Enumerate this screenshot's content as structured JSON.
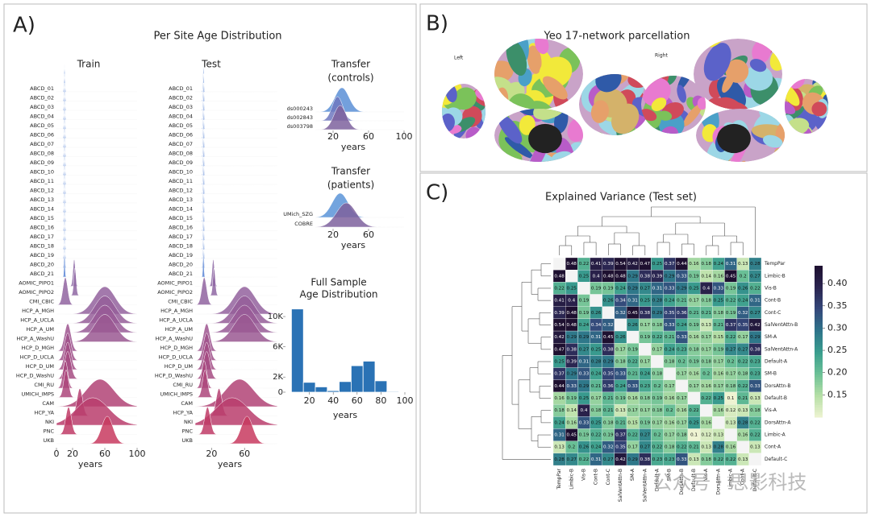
{
  "figure": {
    "panel_a": {
      "label": "A)",
      "title": "Per Site Age Distribution"
    },
    "panel_b": {
      "label": "B)",
      "title": "Yeo 17-network parcellation",
      "left": "Left",
      "right": "Right"
    },
    "panel_c": {
      "label": "C)",
      "title": "Explained Variance (Test set)"
    },
    "watermark": "公众号 · 思影科技"
  },
  "chart_data": [
    {
      "type": "ridge",
      "title": [
        "Train"
      ],
      "xlabel": "years",
      "xlim": [
        0,
        100
      ],
      "xticks": [
        0,
        20,
        60,
        100
      ],
      "series": [
        {
          "name": "ABCD_01",
          "mean": 10,
          "sd": 0.6,
          "color": "#5b86d6"
        },
        {
          "name": "ABCD_02",
          "mean": 10,
          "sd": 0.6,
          "color": "#5b86d6"
        },
        {
          "name": "ABCD_03",
          "mean": 10,
          "sd": 0.6,
          "color": "#5b86d6"
        },
        {
          "name": "ABCD_04",
          "mean": 10,
          "sd": 0.6,
          "color": "#5b86d6"
        },
        {
          "name": "ABCD_05",
          "mean": 10,
          "sd": 0.6,
          "color": "#5b86d6"
        },
        {
          "name": "ABCD_06",
          "mean": 10,
          "sd": 0.6,
          "color": "#5b86d6"
        },
        {
          "name": "ABCD_07",
          "mean": 10,
          "sd": 0.6,
          "color": "#5b86d6"
        },
        {
          "name": "ABCD_08",
          "mean": 10,
          "sd": 0.6,
          "color": "#5b86d6"
        },
        {
          "name": "ABCD_09",
          "mean": 10,
          "sd": 0.6,
          "color": "#5b86d6"
        },
        {
          "name": "ABCD_10",
          "mean": 10,
          "sd": 0.6,
          "color": "#5b86d6"
        },
        {
          "name": "ABCD_11",
          "mean": 10,
          "sd": 0.6,
          "color": "#5b86d6"
        },
        {
          "name": "ABCD_12",
          "mean": 10,
          "sd": 0.6,
          "color": "#5b86d6"
        },
        {
          "name": "ABCD_13",
          "mean": 10,
          "sd": 0.6,
          "color": "#5b86d6"
        },
        {
          "name": "ABCD_14",
          "mean": 10,
          "sd": 0.6,
          "color": "#5b86d6"
        },
        {
          "name": "ABCD_15",
          "mean": 10,
          "sd": 0.6,
          "color": "#5b86d6"
        },
        {
          "name": "ABCD_16",
          "mean": 10,
          "sd": 0.6,
          "color": "#5b86d6"
        },
        {
          "name": "ABCD_17",
          "mean": 10,
          "sd": 0.6,
          "color": "#5b86d6"
        },
        {
          "name": "ABCD_18",
          "mean": 10,
          "sd": 0.6,
          "color": "#5b86d6"
        },
        {
          "name": "ABCD_19",
          "mean": 10,
          "sd": 0.6,
          "color": "#5b86d6"
        },
        {
          "name": "ABCD_20",
          "mean": 10,
          "sd": 0.6,
          "color": "#5b86d6"
        },
        {
          "name": "ABCD_21",
          "mean": 10,
          "sd": 0.6,
          "color": "#5b86d6"
        },
        {
          "name": "AOMIC_PIPO1",
          "mean": 22,
          "sd": 1.5,
          "color": "#8e6aa6"
        },
        {
          "name": "AOMIC_PIPO2",
          "mean": 23,
          "sd": 1.5,
          "color": "#8f67a3"
        },
        {
          "name": "CMI_CBIC",
          "mean": 11,
          "sd": 3,
          "color": "#9164a0"
        },
        {
          "name": "HCP_A_MGH",
          "mean": 60,
          "sd": 13,
          "color": "#93619d"
        },
        {
          "name": "HCP_A_UCLA",
          "mean": 60,
          "sd": 13,
          "color": "#955e99"
        },
        {
          "name": "HCP_A_UM",
          "mean": 60,
          "sd": 13,
          "color": "#985b96"
        },
        {
          "name": "HCP_A_WashU",
          "mean": 60,
          "sd": 13,
          "color": "#9a5892"
        },
        {
          "name": "HCP_D_MGH",
          "mean": 14,
          "sd": 4,
          "color": "#9d558f"
        },
        {
          "name": "HCP_D_UCLA",
          "mean": 14,
          "sd": 4,
          "color": "#a0528b"
        },
        {
          "name": "HCP_D_UM",
          "mean": 14,
          "sd": 4,
          "color": "#a34f87"
        },
        {
          "name": "HCP_D_WashU",
          "mean": 14,
          "sd": 4,
          "color": "#a64c83"
        },
        {
          "name": "CMI_RU",
          "mean": 11,
          "sd": 3,
          "color": "#a9497f"
        },
        {
          "name": "UMICH_IMPS",
          "mean": 12,
          "sd": 3,
          "color": "#ad467b"
        },
        {
          "name": "CAM",
          "mean": 54,
          "sd": 17,
          "color": "#b14376"
        },
        {
          "name": "HCP_YA",
          "mean": 29,
          "sd": 3.5,
          "color": "#b54071"
        },
        {
          "name": "NKI",
          "mean": 45,
          "sd": 20,
          "color": "#ba3d6c"
        },
        {
          "name": "PNC",
          "mean": 15,
          "sd": 3.5,
          "color": "#c03b66"
        },
        {
          "name": "UKB",
          "mean": 63,
          "sd": 7,
          "color": "#c83a5f"
        }
      ]
    },
    {
      "type": "ridge",
      "title": [
        "Test"
      ],
      "xlabel": "years",
      "xlim": [
        0,
        100
      ],
      "xticks": [
        20,
        60
      ],
      "series": [
        {
          "name": "ABCD_01",
          "mean": 10,
          "sd": 0.6,
          "color": "#5b86d6"
        },
        {
          "name": "ABCD_02",
          "mean": 10,
          "sd": 0.6,
          "color": "#5b86d6"
        },
        {
          "name": "ABCD_03",
          "mean": 10,
          "sd": 0.6,
          "color": "#5b86d6"
        },
        {
          "name": "ABCD_04",
          "mean": 10,
          "sd": 0.6,
          "color": "#5b86d6"
        },
        {
          "name": "ABCD_05",
          "mean": 10,
          "sd": 0.6,
          "color": "#5b86d6"
        },
        {
          "name": "ABCD_06",
          "mean": 10,
          "sd": 0.6,
          "color": "#5b86d6"
        },
        {
          "name": "ABCD_07",
          "mean": 10,
          "sd": 0.6,
          "color": "#5b86d6"
        },
        {
          "name": "ABCD_08",
          "mean": 10,
          "sd": 0.6,
          "color": "#5b86d6"
        },
        {
          "name": "ABCD_09",
          "mean": 10,
          "sd": 0.6,
          "color": "#5b86d6"
        },
        {
          "name": "ABCD_10",
          "mean": 10,
          "sd": 0.6,
          "color": "#5b86d6"
        },
        {
          "name": "ABCD_11",
          "mean": 10,
          "sd": 0.6,
          "color": "#5b86d6"
        },
        {
          "name": "ABCD_12",
          "mean": 10,
          "sd": 0.6,
          "color": "#5b86d6"
        },
        {
          "name": "ABCD_13",
          "mean": 10,
          "sd": 0.6,
          "color": "#5b86d6"
        },
        {
          "name": "ABCD_14",
          "mean": 10,
          "sd": 0.6,
          "color": "#5b86d6"
        },
        {
          "name": "ABCD_15",
          "mean": 10,
          "sd": 0.6,
          "color": "#5b86d6"
        },
        {
          "name": "ABCD_16",
          "mean": 10,
          "sd": 0.6,
          "color": "#5b86d6"
        },
        {
          "name": "ABCD_17",
          "mean": 10,
          "sd": 0.6,
          "color": "#5b86d6"
        },
        {
          "name": "ABCD_18",
          "mean": 10,
          "sd": 0.6,
          "color": "#5b86d6"
        },
        {
          "name": "ABCD_19",
          "mean": 10,
          "sd": 0.6,
          "color": "#5b86d6"
        },
        {
          "name": "ABCD_20",
          "mean": 10,
          "sd": 0.6,
          "color": "#5b86d6"
        },
        {
          "name": "ABCD_21",
          "mean": 10,
          "sd": 0.6,
          "color": "#5b86d6"
        },
        {
          "name": "AOMIC_PIPO1",
          "mean": 22,
          "sd": 1.5,
          "color": "#8e6aa6"
        },
        {
          "name": "AOMIC_PIPO2",
          "mean": 23,
          "sd": 1.5,
          "color": "#8f67a3"
        },
        {
          "name": "CMI_CBIC",
          "mean": 11,
          "sd": 3,
          "color": "#9164a0"
        },
        {
          "name": "HCP_A_MGH",
          "mean": 60,
          "sd": 13,
          "color": "#93619d"
        },
        {
          "name": "HCP_A_UCLA",
          "mean": 60,
          "sd": 13,
          "color": "#955e99"
        },
        {
          "name": "HCP_A_UM",
          "mean": 60,
          "sd": 13,
          "color": "#985b96"
        },
        {
          "name": "HCP_A_WashU",
          "mean": 60,
          "sd": 13,
          "color": "#9a5892"
        },
        {
          "name": "HCP_D_MGH",
          "mean": 14,
          "sd": 4,
          "color": "#9d558f"
        },
        {
          "name": "HCP_D_UCLA",
          "mean": 14,
          "sd": 4,
          "color": "#a0528b"
        },
        {
          "name": "HCP_D_UM",
          "mean": 14,
          "sd": 4,
          "color": "#a34f87"
        },
        {
          "name": "HCP_D_WashU",
          "mean": 14,
          "sd": 4,
          "color": "#a64c83"
        },
        {
          "name": "CMI_RU",
          "mean": 11,
          "sd": 3,
          "color": "#a9497f"
        },
        {
          "name": "UMICH_IMPS",
          "mean": 12,
          "sd": 3,
          "color": "#ad467b"
        },
        {
          "name": "CAM",
          "mean": 54,
          "sd": 17,
          "color": "#b14376"
        },
        {
          "name": "HCP_YA",
          "mean": 29,
          "sd": 3.5,
          "color": "#b54071"
        },
        {
          "name": "NKI",
          "mean": 45,
          "sd": 20,
          "color": "#ba3d6c"
        },
        {
          "name": "PNC",
          "mean": 15,
          "sd": 3.5,
          "color": "#c03b66"
        },
        {
          "name": "UKB",
          "mean": 63,
          "sd": 7,
          "color": "#c83a5f"
        }
      ]
    },
    {
      "type": "ridge",
      "title": [
        "Transfer",
        "(controls)"
      ],
      "xlabel": "years",
      "xlim": [
        0,
        100
      ],
      "xticks": [
        20,
        60,
        100
      ],
      "series": [
        {
          "name": "ds000243",
          "mean": 30,
          "sd": 8,
          "color": "#5b8fd6"
        },
        {
          "name": "ds002843",
          "mean": 25,
          "sd": 6,
          "color": "#6e78bf"
        },
        {
          "name": "ds003798",
          "mean": 28,
          "sd": 7,
          "color": "#7e619e"
        }
      ]
    },
    {
      "type": "ridge",
      "title": [
        "Transfer",
        "(patients)"
      ],
      "xlabel": "years",
      "xlim": [
        0,
        100
      ],
      "xticks": [
        20,
        60
      ],
      "series": [
        {
          "name": "UMich_SZG",
          "mean": 28,
          "sd": 9,
          "color": "#5b94d8"
        },
        {
          "name": "COBRE",
          "mean": 35,
          "sd": 11,
          "color": "#7e619e"
        }
      ]
    },
    {
      "type": "histogram",
      "title": [
        "Full Sample",
        "Age Distribution"
      ],
      "xlabel": "years",
      "color": "#2a72b5",
      "bins": [
        5,
        15,
        25,
        35,
        45,
        55,
        65,
        75,
        85,
        95
      ],
      "counts": [
        11000,
        1300,
        700,
        200,
        1400,
        3500,
        4100,
        1500,
        100
      ],
      "xlim": [
        0,
        100
      ],
      "xticks": [
        20,
        40,
        60,
        80,
        100
      ],
      "ylim": [
        0,
        11500
      ],
      "yticks": [
        0,
        {
          "value": 2000,
          "label": "2K"
        },
        {
          "value": 6000,
          "label": "6K"
        },
        {
          "value": 10000,
          "label": "10K"
        }
      ]
    },
    {
      "type": "heatmap",
      "categories": [
        "TempPar",
        "Limbic-B",
        "Vis-B",
        "Cont-B",
        "Cont-C",
        "SalVentAttn-B",
        "SM-A",
        "SalVentAttn-A",
        "Default-A",
        "SM-B",
        "DorsAttn-B",
        "Default-B",
        "Vis-A",
        "DorsAttn-A",
        "Limbic-A",
        "Cont-A",
        "Default-C"
      ],
      "values": [
        [
          null,
          0.48,
          0.22,
          0.41,
          0.39,
          0.54,
          0.42,
          0.47,
          0.25,
          0.37,
          0.44,
          0.16,
          0.18,
          0.24,
          0.31,
          0.13,
          0.28
        ],
        [
          0.48,
          null,
          0.25,
          0.4,
          0.48,
          0.48,
          0.29,
          0.38,
          0.39,
          0.29,
          0.33,
          0.19,
          0.14,
          0.16,
          0.45,
          0.2,
          0.27
        ],
        [
          0.22,
          0.25,
          null,
          0.19,
          0.19,
          0.24,
          0.29,
          0.27,
          0.31,
          0.33,
          0.29,
          0.25,
          0.4,
          0.33,
          0.19,
          0.26,
          0.22
        ],
        [
          0.41,
          0.4,
          0.19,
          null,
          0.26,
          0.34,
          0.31,
          0.25,
          0.28,
          0.24,
          0.21,
          0.17,
          0.18,
          0.25,
          0.22,
          0.24,
          0.31
        ],
        [
          0.39,
          0.48,
          0.19,
          0.26,
          null,
          0.32,
          0.45,
          0.38,
          0.29,
          0.35,
          0.36,
          0.21,
          0.21,
          0.18,
          0.19,
          0.32,
          0.27
        ],
        [
          0.54,
          0.48,
          0.24,
          0.34,
          0.32,
          null,
          0.26,
          0.17,
          0.18,
          0.33,
          0.24,
          0.19,
          0.13,
          0.21,
          0.37,
          0.35,
          0.42
        ],
        [
          0.42,
          0.29,
          0.29,
          0.31,
          0.45,
          0.26,
          null,
          0.19,
          0.22,
          0.21,
          0.33,
          0.16,
          0.17,
          0.15,
          0.22,
          0.17,
          0.29
        ],
        [
          0.47,
          0.38,
          0.27,
          0.25,
          0.38,
          0.17,
          0.19,
          null,
          0.17,
          0.24,
          0.23,
          0.18,
          0.17,
          0.19,
          0.27,
          0.27,
          0.38
        ],
        [
          0.25,
          0.39,
          0.31,
          0.28,
          0.29,
          0.18,
          0.22,
          0.17,
          null,
          0.18,
          0.2,
          0.19,
          0.18,
          0.17,
          0.2,
          0.22,
          0.23
        ],
        [
          0.37,
          0.29,
          0.33,
          0.24,
          0.35,
          0.33,
          0.21,
          0.24,
          0.18,
          null,
          0.17,
          0.16,
          0.2,
          0.16,
          0.17,
          0.18,
          0.23
        ],
        [
          0.44,
          0.33,
          0.29,
          0.21,
          0.36,
          0.24,
          0.33,
          0.23,
          0.2,
          0.17,
          null,
          0.17,
          0.16,
          0.17,
          0.18,
          0.22,
          0.33
        ],
        [
          0.16,
          0.19,
          0.25,
          0.17,
          0.21,
          0.19,
          0.16,
          0.18,
          0.19,
          0.16,
          0.17,
          null,
          0.22,
          0.25,
          0.1,
          0.21,
          0.13
        ],
        [
          0.18,
          0.14,
          0.4,
          0.18,
          0.21,
          0.13,
          0.17,
          0.17,
          0.18,
          0.2,
          0.16,
          0.22,
          null,
          0.16,
          0.12,
          0.13,
          0.18
        ],
        [
          0.24,
          0.16,
          0.33,
          0.25,
          0.18,
          0.21,
          0.15,
          0.19,
          0.17,
          0.16,
          0.17,
          0.25,
          0.16,
          null,
          0.13,
          0.28,
          0.22
        ],
        [
          0.31,
          0.45,
          0.19,
          0.22,
          0.19,
          0.37,
          0.22,
          0.27,
          0.2,
          0.17,
          0.18,
          0.1,
          0.12,
          0.13,
          null,
          0.16,
          0.22
        ],
        [
          0.13,
          0.2,
          0.26,
          0.24,
          0.32,
          0.35,
          0.17,
          0.27,
          0.22,
          0.18,
          0.22,
          0.21,
          0.13,
          0.28,
          0.16,
          null,
          0.13
        ],
        [
          0.28,
          0.27,
          0.22,
          0.31,
          0.27,
          0.42,
          0.29,
          0.38,
          0.23,
          0.23,
          0.33,
          0.13,
          0.18,
          0.22,
          0.22,
          0.13,
          null
        ]
      ],
      "zlim": [
        0.1,
        0.44
      ],
      "zticks": [
        0.15,
        {
          "value": 0.2,
          "label": "0.20"
        },
        0.25,
        {
          "value": 0.3,
          "label": "0.30"
        },
        0.35,
        {
          "value": 0.4,
          "label": "0.40"
        }
      ],
      "colormap": [
        "#eef3d2",
        "#b6dfa6",
        "#6cc196",
        "#3a9e8e",
        "#2e748a",
        "#34487a",
        "#2b2550",
        "#1e1030"
      ]
    }
  ]
}
